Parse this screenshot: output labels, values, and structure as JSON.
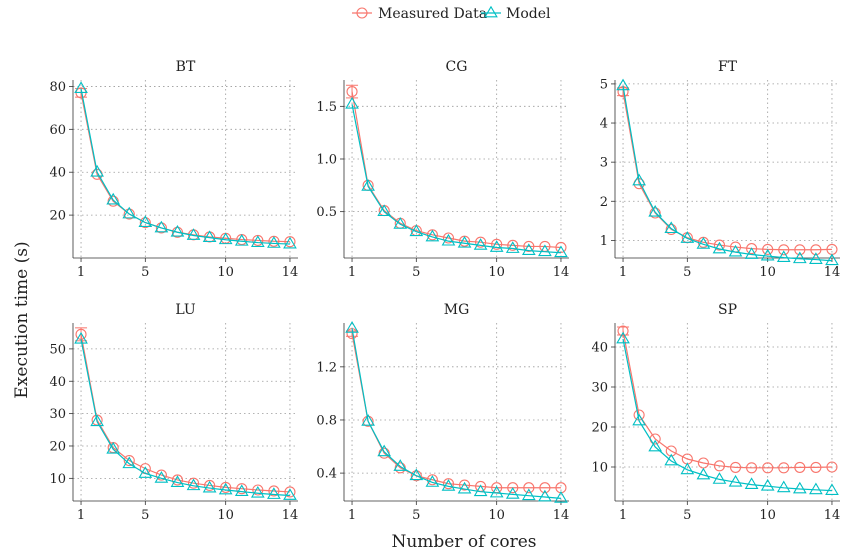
{
  "colors": {
    "measured": "#F8766D",
    "model": "#00BFC4",
    "grid": "#9a9a9a",
    "axis": "#333333"
  },
  "chart_data": {
    "type": "line",
    "xlabel": "Number of cores",
    "ylabel": "Execution time (s)",
    "legend": {
      "position": "top",
      "entries": [
        "Measured Data",
        "Model"
      ]
    },
    "grid": true,
    "x": [
      1,
      2,
      3,
      4,
      5,
      6,
      7,
      8,
      9,
      10,
      11,
      12,
      13,
      14
    ],
    "xticks": [
      1,
      5,
      10,
      14
    ],
    "panels": [
      {
        "title": "BT",
        "ylim": [
          0,
          83
        ],
        "yticks": [
          20,
          40,
          60,
          80
        ],
        "series": [
          {
            "name": "Measured Data",
            "values": [
              77,
              39,
              26.5,
              20.5,
              16.5,
              14,
              12,
              10.8,
              9.8,
              9.2,
              8.6,
              8.2,
              7.8,
              7.6
            ],
            "error": [
              2,
              0,
              0,
              0,
              0,
              0,
              0,
              0,
              0,
              0,
              0,
              0,
              0,
              0
            ]
          },
          {
            "name": "Model",
            "values": [
              79,
              40,
              27,
              20.5,
              16.5,
              14,
              12,
              10.5,
              9.5,
              8.5,
              7.8,
              7.2,
              6.8,
              6.5
            ]
          }
        ]
      },
      {
        "title": "CG",
        "ylim": [
          0.06,
          1.75
        ],
        "yticks": [
          0.5,
          1.0,
          1.5
        ],
        "series": [
          {
            "name": "Measured Data",
            "values": [
              1.64,
              0.75,
              0.51,
              0.39,
              0.32,
              0.28,
              0.25,
              0.22,
              0.21,
              0.19,
              0.18,
              0.17,
              0.17,
              0.16
            ],
            "error": [
              0.06,
              0,
              0,
              0,
              0,
              0,
              0,
              0,
              0,
              0,
              0,
              0,
              0,
              0
            ]
          },
          {
            "name": "Model",
            "values": [
              1.52,
              0.74,
              0.5,
              0.38,
              0.31,
              0.26,
              0.22,
              0.2,
              0.18,
              0.16,
              0.15,
              0.13,
              0.12,
              0.11
            ]
          }
        ]
      },
      {
        "title": "FT",
        "ylim": [
          0.55,
          5.1
        ],
        "yticks": [
          1,
          2,
          3,
          4,
          5
        ],
        "series": [
          {
            "name": "Measured Data",
            "values": [
              4.8,
              2.45,
              1.7,
              1.28,
              1.07,
              0.95,
              0.88,
              0.83,
              0.79,
              0.77,
              0.76,
              0.76,
              0.76,
              0.77
            ],
            "error": [
              0.1,
              0,
              0,
              0,
              0,
              0,
              0,
              0,
              0,
              0,
              0,
              0,
              0,
              0
            ]
          },
          {
            "name": "Model",
            "values": [
              4.95,
              2.52,
              1.72,
              1.3,
              1.05,
              0.9,
              0.78,
              0.7,
              0.64,
              0.6,
              0.56,
              0.53,
              0.51,
              0.48
            ]
          }
        ]
      },
      {
        "title": "LU",
        "ylim": [
          3,
          58
        ],
        "yticks": [
          10,
          20,
          30,
          40,
          50
        ],
        "series": [
          {
            "name": "Measured Data",
            "values": [
              54.5,
              28,
              19.5,
              15.5,
              13,
              11,
              9.5,
              8.5,
              7.8,
              7.2,
              6.8,
              6.4,
              6.1,
              5.8
            ],
            "error": [
              2,
              0,
              0,
              0,
              0,
              0,
              0,
              0,
              0,
              0,
              0,
              0,
              0,
              0
            ]
          },
          {
            "name": "Model",
            "values": [
              53,
              27.5,
              19,
              14.5,
              11.5,
              10,
              8.7,
              7.7,
              7,
              6.4,
              5.9,
              5.4,
              5,
              4.7
            ]
          }
        ]
      },
      {
        "title": "MG",
        "ylim": [
          0.19,
          1.53
        ],
        "yticks": [
          0.4,
          0.8,
          1.2
        ],
        "series": [
          {
            "name": "Measured Data",
            "values": [
              1.45,
              0.79,
              0.55,
              0.44,
              0.38,
              0.35,
              0.32,
              0.31,
              0.3,
              0.29,
              0.29,
              0.29,
              0.29,
              0.29
            ],
            "error": [
              0.02,
              0,
              0,
              0,
              0,
              0,
              0,
              0,
              0,
              0,
              0,
              0,
              0,
              0
            ]
          },
          {
            "name": "Model",
            "values": [
              1.49,
              0.79,
              0.56,
              0.45,
              0.38,
              0.33,
              0.3,
              0.28,
              0.26,
              0.25,
              0.24,
              0.23,
              0.22,
              0.21
            ]
          }
        ]
      },
      {
        "title": "SP",
        "ylim": [
          1.5,
          46
        ],
        "yticks": [
          10,
          20,
          30,
          40
        ],
        "series": [
          {
            "name": "Measured Data",
            "values": [
              44,
              23,
              17,
              14,
              12,
              11,
              10.3,
              9.9,
              9.8,
              9.8,
              9.8,
              9.9,
              9.9,
              10
            ],
            "error": [
              1,
              0,
              0,
              0,
              0,
              0,
              0,
              0,
              0,
              0,
              0,
              0,
              0,
              0
            ]
          },
          {
            "name": "Model",
            "values": [
              42,
              21.5,
              15,
              11.5,
              9.3,
              8,
              6.9,
              6.2,
              5.6,
              5.2,
              4.8,
              4.5,
              4.3,
              4.1
            ]
          }
        ]
      }
    ]
  }
}
